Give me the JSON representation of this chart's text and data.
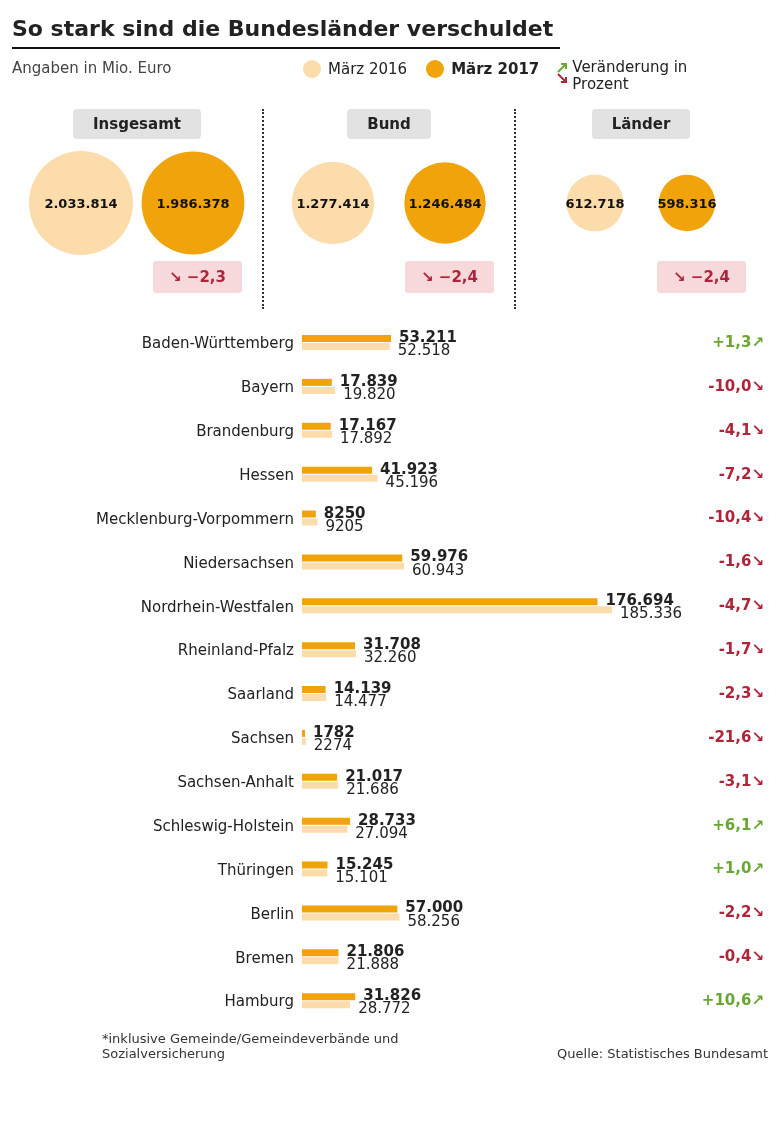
{
  "chart_data": [
    {
      "type": "other",
      "title": "So stark sind die Bundesländer verschuldet",
      "subtitle": "Angaben in Mio. Euro",
      "categories": [
        "Insgesamt",
        "Bund",
        "Länder"
      ],
      "series": [
        {
          "color": "#fcdcab",
          "values": [
            2033814,
            1277414,
            612718
          ],
          "value_labels": [
            "2.033.814",
            "1.277.414",
            "612.718"
          ]
        },
        {
          "color": "#f0a30a",
          "values": [
            1986378,
            1246484,
            598316
          ],
          "value_labels": [
            "1.986.378",
            "1.246.484",
            "598.316"
          ]
        }
      ],
      "annotations": [
        {
          "text": "↘ −2,3",
          "x": "Insgesamt"
        },
        {
          "text": "↘ −2,4",
          "x": "Bund"
        },
        {
          "text": "↘ −2,4",
          "x": "Länder"
        }
      ]
    },
    {
      "type": "bar",
      "orientation": "horizontal",
      "legend": "top",
      "categories": [
        "Baden-Württemberg",
        "Bayern",
        "Brandenburg",
        "Hessen",
        "Mecklenburg-Vorpommern",
        "Niedersachsen",
        "Nordrhein-Westfalen",
        "Rheinland-Pfalz",
        "Saarland",
        "Sachsen",
        "Sachsen-Anhalt",
        "Schleswig-Holstein",
        "Thüringen",
        "Berlin",
        "Bremen",
        "Hamburg"
      ],
      "series": [
        {
          "name": "März 2017",
          "color": "#f0a30a",
          "values": [
            53211,
            17839,
            17167,
            41923,
            8250,
            59976,
            176694,
            31708,
            14139,
            1782,
            21017,
            28733,
            15245,
            57000,
            21806,
            31826
          ],
          "value_labels": [
            "53.211",
            "17.839",
            "17.167",
            "41.923",
            "8250",
            "59.976",
            "176.694",
            "31.708",
            "14.139",
            "1782",
            "21.017",
            "28.733",
            "15.245",
            "57.000",
            "21.806",
            "31.826"
          ]
        },
        {
          "name": "März 2016",
          "color": "#fcdcab",
          "values": [
            52518,
            19820,
            17892,
            45196,
            9205,
            60943,
            185336,
            32260,
            14477,
            2274,
            21686,
            27094,
            15101,
            58256,
            21888,
            28772
          ],
          "value_labels": [
            "52.518",
            "19.820",
            "17.892",
            "45.196",
            "9205",
            "60.943",
            "185.336",
            "32.260",
            "14.477",
            "2274",
            "21.686",
            "27.094",
            "15.101",
            "58.256",
            "21.888",
            "28.772"
          ]
        }
      ],
      "annotations": [
        "Veränderung in Prozent",
        "+1,3↗",
        "-10,0↘",
        "-4,1↘",
        "-7,2↘",
        "-10,4↘",
        "-1,6↘",
        "-4,7↘",
        "-1,7↘",
        "-2,3↘",
        "-21,6↘",
        "-3,1↘",
        "+6,1↗",
        "+1,0↗",
        "-2,2↘",
        "-0,4↘",
        "+10,6↗",
        "*inklusive Gemeinde/Gemeindeverbände und Sozialversicherung",
        "Quelle: Statistisches Bundesamt"
      ]
    }
  ]
}
